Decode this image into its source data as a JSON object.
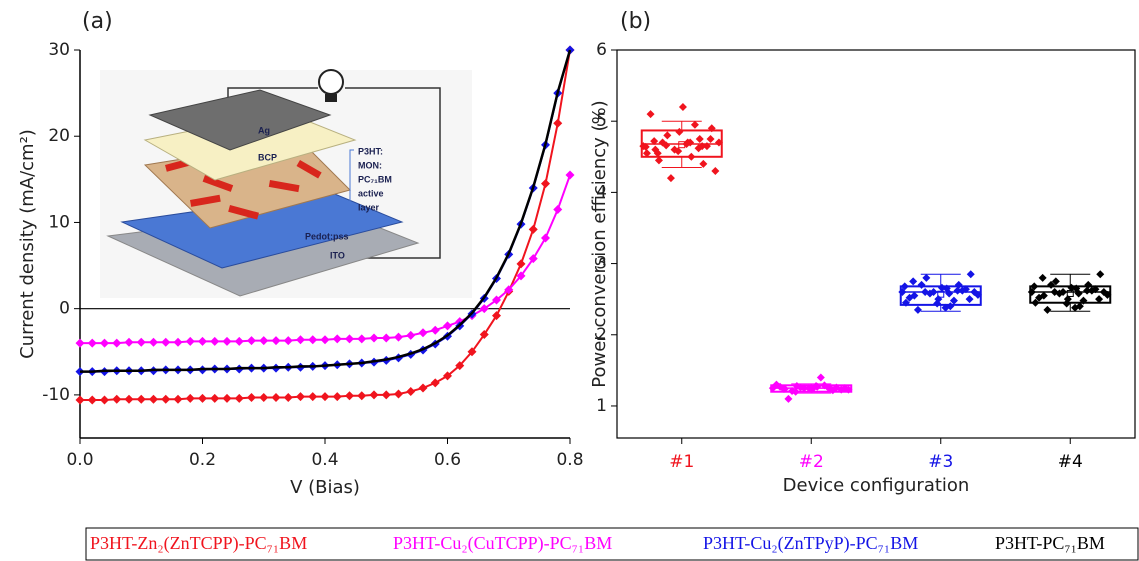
{
  "panels": [
    "(a)",
    "(b)"
  ],
  "inset": {
    "labels": [
      "Ag",
      "BCP",
      "P3HT:",
      "MON:",
      "PC₇₁BM",
      "active",
      "layer",
      "Pedot:pss",
      "ITO"
    ]
  },
  "chart_data": [
    {
      "type": "line",
      "xlabel": "V (Bias)",
      "ylabel": "Current density (mA/cm²)",
      "xlim": [
        0,
        0.8
      ],
      "xticks": [
        {
          "value": 0,
          "label": "0.0"
        },
        0.2,
        0.4,
        0.6,
        0.8
      ],
      "ylim": [
        -15,
        30
      ],
      "yticks": [
        -10,
        0,
        10,
        20,
        30
      ],
      "zero_line": true,
      "x": [
        0,
        0.02,
        0.04,
        0.06,
        0.08,
        0.1,
        0.12,
        0.14,
        0.16,
        0.18,
        0.2,
        0.22,
        0.24,
        0.26,
        0.28,
        0.3,
        0.32,
        0.34,
        0.36,
        0.38,
        0.4,
        0.42,
        0.44,
        0.46,
        0.48,
        0.5,
        0.52,
        0.54,
        0.56,
        0.58,
        0.6,
        0.62,
        0.64,
        0.66,
        0.68,
        0.7,
        0.72,
        0.74,
        0.76,
        0.78,
        0.8
      ],
      "series": [
        {
          "name": "P3HT-Zn₂(ZnTCPP)-PC₇₁BM",
          "color": "#f0141e",
          "marker": true,
          "values": [
            -10.6,
            -10.6,
            -10.6,
            -10.5,
            -10.5,
            -10.5,
            -10.5,
            -10.5,
            -10.5,
            -10.4,
            -10.4,
            -10.4,
            -10.4,
            -10.4,
            -10.3,
            -10.3,
            -10.3,
            -10.3,
            -10.2,
            -10.2,
            -10.2,
            -10.2,
            -10.1,
            -10.1,
            -10.0,
            -10.0,
            -9.9,
            -9.6,
            -9.2,
            -8.6,
            -7.8,
            -6.6,
            -5.0,
            -3.0,
            -0.8,
            2.0,
            5.2,
            9.2,
            14.5,
            21.5,
            30
          ]
        },
        {
          "name": "P3HT-Cu₂(CuTCPP)-PC₇₁BM",
          "color": "#ff00ff",
          "marker": true,
          "values": [
            -4.0,
            -4.0,
            -4.0,
            -4.0,
            -3.9,
            -3.9,
            -3.9,
            -3.9,
            -3.9,
            -3.8,
            -3.8,
            -3.8,
            -3.8,
            -3.8,
            -3.7,
            -3.7,
            -3.7,
            -3.7,
            -3.6,
            -3.6,
            -3.6,
            -3.5,
            -3.5,
            -3.5,
            -3.4,
            -3.4,
            -3.3,
            -3.1,
            -2.8,
            -2.5,
            -2.0,
            -1.5,
            -0.8,
            0.0,
            1.0,
            2.2,
            3.8,
            5.8,
            8.2,
            11.5,
            15.5
          ]
        },
        {
          "name": "P3HT-Cu₂(ZnTPyP)-PC₇₁BM",
          "color": "#1414e6",
          "marker": true,
          "values": [
            -7.3,
            -7.3,
            -7.3,
            -7.2,
            -7.2,
            -7.2,
            -7.2,
            -7.1,
            -7.1,
            -7.1,
            -7.1,
            -7.0,
            -7.0,
            -7.0,
            -6.9,
            -6.9,
            -6.9,
            -6.8,
            -6.8,
            -6.7,
            -6.6,
            -6.5,
            -6.4,
            -6.3,
            -6.2,
            -6.0,
            -5.7,
            -5.3,
            -4.8,
            -4.1,
            -3.2,
            -2.0,
            -0.6,
            1.2,
            3.5,
            6.3,
            9.8,
            14.0,
            19.0,
            25.0,
            30
          ]
        },
        {
          "name": "P3HT-PC₇₁BM",
          "color": "#000000",
          "marker": false,
          "values": [
            -7.3,
            -7.3,
            -7.2,
            -7.2,
            -7.2,
            -7.2,
            -7.1,
            -7.1,
            -7.1,
            -7.1,
            -7.0,
            -7.0,
            -7.0,
            -6.9,
            -6.9,
            -6.9,
            -6.8,
            -6.8,
            -6.7,
            -6.7,
            -6.6,
            -6.5,
            -6.4,
            -6.3,
            -6.1,
            -5.9,
            -5.6,
            -5.2,
            -4.7,
            -4.0,
            -3.1,
            -1.9,
            -0.5,
            1.3,
            3.6,
            6.4,
            9.9,
            14.1,
            19.1,
            25.1,
            30
          ]
        }
      ]
    },
    {
      "type": "box",
      "xlabel": "Device configuration",
      "ylabel": "Power conversion efficiency (%)",
      "ylim": [
        0.55,
        6
      ],
      "yticks": [
        1,
        2,
        3,
        4,
        5,
        6
      ],
      "categories": [
        "#1",
        "#2",
        "#3",
        "#4"
      ],
      "colors": [
        "#f0141e",
        "#ff00ff",
        "#1414e6",
        "#000000"
      ],
      "boxes": [
        {
          "q1": 4.5,
          "median": 4.68,
          "q3": 4.87,
          "whisker_low": 4.35,
          "whisker_high": 5.0,
          "mean": 4.67,
          "points": [
            4.65,
            4.7,
            4.6,
            4.75,
            4.8,
            4.9,
            4.85,
            4.55,
            4.5,
            4.45,
            4.4,
            4.2,
            4.3,
            5.2,
            5.1,
            4.95,
            4.7,
            4.65,
            4.6,
            4.7,
            4.68,
            4.72,
            4.62,
            4.66,
            4.75,
            4.58,
            4.64,
            4.7,
            4.55,
            4.65
          ]
        },
        {
          "q1": 1.2,
          "median": 1.25,
          "q3": 1.29,
          "whisker_low": 1.18,
          "whisker_high": 1.31,
          "mean": 1.25,
          "points": [
            1.25,
            1.27,
            1.24,
            1.26,
            1.28,
            1.23,
            1.25,
            1.3,
            1.4,
            1.1,
            1.22,
            1.26,
            1.25,
            1.24,
            1.27,
            1.29,
            1.21,
            1.26,
            1.25,
            1.23,
            1.28,
            1.24,
            1.26,
            1.2
          ]
        },
        {
          "q1": 2.42,
          "median": 2.6,
          "q3": 2.68,
          "whisker_low": 2.33,
          "whisker_high": 2.85,
          "mean": 2.57,
          "points": [
            2.6,
            2.65,
            2.55,
            2.7,
            2.8,
            2.85,
            2.5,
            2.45,
            2.4,
            2.35,
            2.62,
            2.58,
            2.6,
            2.66,
            2.52,
            2.48,
            2.7,
            2.64,
            2.6,
            2.56,
            2.38,
            2.75,
            2.62,
            2.6,
            2.5,
            2.44,
            2.68,
            2.58
          ]
        },
        {
          "q1": 2.45,
          "median": 2.6,
          "q3": 2.68,
          "whisker_low": 2.33,
          "whisker_high": 2.85,
          "mean": 2.58,
          "points": [
            2.6,
            2.65,
            2.55,
            2.7,
            2.75,
            2.85,
            2.5,
            2.45,
            2.4,
            2.35,
            2.62,
            2.58,
            2.6,
            2.66,
            2.52,
            2.48,
            2.7,
            2.64,
            2.6,
            2.56,
            2.38,
            2.8,
            2.62,
            2.6,
            2.5,
            2.44,
            2.68,
            2.58
          ]
        }
      ]
    }
  ]
}
